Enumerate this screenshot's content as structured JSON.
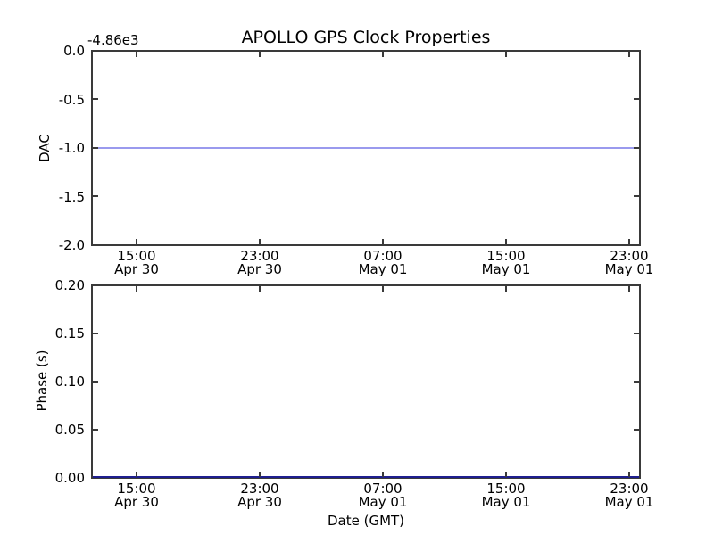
{
  "chart_data": [
    {
      "type": "line",
      "title": "APOLLO GPS Clock Properties",
      "ylabel": "DAC",
      "y_offset_text": "-4.86e3",
      "ylim": [
        -2.0,
        0.0
      ],
      "y_ticks": [
        0.0,
        -0.5,
        -1.0,
        -1.5,
        -2.0
      ],
      "y_tick_labels": [
        "0.0",
        "-0.5",
        "-1.0",
        "-1.5",
        "-2.0"
      ],
      "x_tick_labels": [
        "15:00\nApr 30",
        "23:00\nApr 30",
        "07:00\nMay 01",
        "15:00\nMay 01",
        "23:00\nMay 01"
      ],
      "x_axis_type": "datetime",
      "grid": false,
      "legend": false,
      "series": [
        {
          "name": "DAC",
          "shape": "constant-horizontal-line",
          "y_value": -1.0,
          "value_with_offset": -4861,
          "color": "#9a9aee"
        }
      ]
    },
    {
      "type": "line",
      "xlabel": "Date (GMT)",
      "ylabel": "Phase (s)",
      "ylim": [
        0.0,
        0.2
      ],
      "y_ticks": [
        0.2,
        0.15,
        0.1,
        0.05,
        0.0
      ],
      "y_tick_labels": [
        "0.20",
        "0.15",
        "0.10",
        "0.05",
        "0.00"
      ],
      "x_tick_labels": [
        "15:00\nApr 30",
        "23:00\nApr 30",
        "07:00\nMay 01",
        "15:00\nMay 01",
        "23:00\nMay 01"
      ],
      "x_axis_type": "datetime",
      "grid": false,
      "legend": false,
      "series": [
        {
          "name": "Phase",
          "shape": "constant-horizontal-line",
          "y_value": 0.0,
          "color": "#1f1f8f"
        }
      ]
    }
  ]
}
